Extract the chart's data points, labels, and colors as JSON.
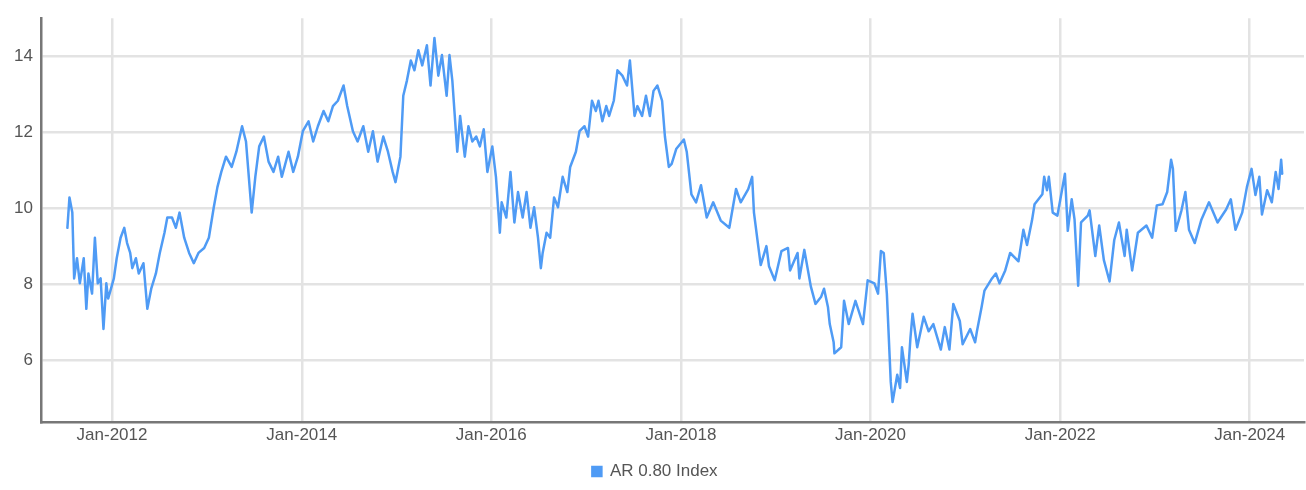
{
  "chart_data": {
    "type": "line",
    "x": [
      "2011-07-13",
      "2011-07-21",
      "2011-08-01",
      "2011-08-08",
      "2011-08-19",
      "2011-08-30",
      "2011-09-14",
      "2011-09-24",
      "2011-10-02",
      "2011-10-16",
      "2011-10-27",
      "2011-11-07",
      "2011-11-18",
      "2011-11-29",
      "2011-12-10",
      "2011-12-17",
      "2011-12-28",
      "2012-01-08",
      "2012-01-19",
      "2012-02-03",
      "2012-02-17",
      "2012-02-28",
      "2012-03-11",
      "2012-03-19",
      "2012-04-02",
      "2012-04-13",
      "2012-05-01",
      "2012-05-16",
      "2012-05-31",
      "2012-06-18",
      "2012-07-03",
      "2012-07-21",
      "2012-08-01",
      "2012-08-19",
      "2012-09-03",
      "2012-09-17",
      "2012-10-05",
      "2012-10-24",
      "2012-11-11",
      "2012-11-29",
      "2012-12-21",
      "2013-01-08",
      "2013-01-27",
      "2013-02-10",
      "2013-02-25",
      "2013-03-15",
      "2013-04-06",
      "2013-04-24",
      "2013-05-16",
      "2013-05-31",
      "2013-06-22",
      "2013-07-06",
      "2013-07-21",
      "2013-08-08",
      "2013-08-26",
      "2013-09-14",
      "2013-10-02",
      "2013-10-16",
      "2013-11-11",
      "2013-11-29",
      "2013-12-17",
      "2014-01-05",
      "2014-01-27",
      "2014-02-14",
      "2014-03-04",
      "2014-03-26",
      "2014-04-13",
      "2014-05-01",
      "2014-05-20",
      "2014-06-11",
      "2014-06-25",
      "2014-07-17",
      "2014-08-04",
      "2014-08-26",
      "2014-09-14",
      "2014-10-02",
      "2014-10-20",
      "2014-11-11",
      "2014-11-29",
      "2014-12-17",
      "2014-12-28",
      "2015-01-16",
      "2015-01-27",
      "2015-02-10",
      "2015-02-25",
      "2015-03-11",
      "2015-03-26",
      "2015-04-10",
      "2015-04-28",
      "2015-05-12",
      "2015-05-27",
      "2015-06-11",
      "2015-06-25",
      "2015-07-13",
      "2015-07-24",
      "2015-08-04",
      "2015-08-23",
      "2015-09-03",
      "2015-09-21",
      "2015-10-05",
      "2015-10-20",
      "2015-11-04",
      "2015-11-18",
      "2015-12-03",
      "2015-12-17",
      "2016-01-05",
      "2016-01-19",
      "2016-02-03",
      "2016-02-10",
      "2016-02-28",
      "2016-03-15",
      "2016-03-30",
      "2016-04-13",
      "2016-05-01",
      "2016-05-16",
      "2016-05-31",
      "2016-06-14",
      "2016-06-29",
      "2016-07-10",
      "2016-07-17",
      "2016-08-01",
      "2016-08-15",
      "2016-08-30",
      "2016-09-14",
      "2016-10-02",
      "2016-10-20",
      "2016-10-31",
      "2016-11-22",
      "2016-12-06",
      "2016-12-25",
      "2017-01-08",
      "2017-01-23",
      "2017-02-07",
      "2017-02-17",
      "2017-03-04",
      "2017-03-19",
      "2017-03-30",
      "2017-04-17",
      "2017-05-01",
      "2017-05-20",
      "2017-06-07",
      "2017-06-18",
      "2017-07-06",
      "2017-07-17",
      "2017-08-04",
      "2017-08-19",
      "2017-09-03",
      "2017-09-17",
      "2017-10-02",
      "2017-10-20",
      "2017-10-31",
      "2017-11-15",
      "2017-11-26",
      "2017-12-14",
      "2018-01-12",
      "2018-01-23",
      "2018-02-10",
      "2018-02-28",
      "2018-03-19",
      "2018-04-10",
      "2018-05-05",
      "2018-06-03",
      "2018-07-06",
      "2018-08-01",
      "2018-08-19",
      "2018-09-17",
      "2018-10-02",
      "2018-10-09",
      "2018-10-24",
      "2018-11-04",
      "2018-11-26",
      "2018-12-06",
      "2018-12-28",
      "2019-01-23",
      "2019-02-17",
      "2019-02-25",
      "2019-03-26",
      "2019-04-02",
      "2019-04-21",
      "2019-05-16",
      "2019-06-03",
      "2019-06-25",
      "2019-07-06",
      "2019-07-21",
      "2019-07-28",
      "2019-08-12",
      "2019-08-15",
      "2019-09-10",
      "2019-09-21",
      "2019-10-09",
      "2019-11-04",
      "2019-12-03",
      "2019-12-21",
      "2020-01-16",
      "2020-01-30",
      "2020-02-10",
      "2020-02-21",
      "2020-03-04",
      "2020-03-19",
      "2020-03-26",
      "2020-04-13",
      "2020-04-24",
      "2020-05-01",
      "2020-05-20",
      "2020-05-27",
      "2020-06-03",
      "2020-06-11",
      "2020-06-29",
      "2020-07-24",
      "2020-08-12",
      "2020-08-30",
      "2020-09-28",
      "2020-10-13",
      "2020-10-31",
      "2020-11-15",
      "2020-12-10",
      "2020-12-21",
      "2021-01-19",
      "2021-02-07",
      "2021-02-14",
      "2021-03-04",
      "2021-03-15",
      "2021-04-13",
      "2021-04-28",
      "2021-05-12",
      "2021-06-03",
      "2021-06-22",
      "2021-07-24",
      "2021-08-12",
      "2021-08-26",
      "2021-09-14",
      "2021-09-24",
      "2021-10-24",
      "2021-10-31",
      "2021-11-11",
      "2021-11-18",
      "2021-12-03",
      "2021-12-21",
      "2022-01-19",
      "2022-01-30",
      "2022-02-14",
      "2022-02-25",
      "2022-03-11",
      "2022-03-22",
      "2022-04-17",
      "2022-04-24",
      "2022-05-16",
      "2022-05-31",
      "2022-06-18",
      "2022-07-10",
      "2022-07-28",
      "2022-08-15",
      "2022-09-06",
      "2022-09-14",
      "2022-10-05",
      "2022-10-27",
      "2022-11-29",
      "2022-12-21",
      "2023-01-08",
      "2023-01-30",
      "2023-02-17",
      "2023-03-04",
      "2023-03-11",
      "2023-03-22",
      "2023-04-13",
      "2023-04-28",
      "2023-05-12",
      "2023-06-03",
      "2023-06-29",
      "2023-07-28",
      "2023-08-30",
      "2023-10-02",
      "2023-10-20",
      "2023-11-07",
      "2023-12-03",
      "2023-12-21",
      "2024-01-08",
      "2024-01-23",
      "2024-02-07",
      "2024-02-17",
      "2024-03-08",
      "2024-03-26",
      "2024-04-10",
      "2024-04-21",
      "2024-05-01",
      "2024-05-05"
    ],
    "series": [
      {
        "name": "AR 0.80 Index",
        "color": "#4f9bf5",
        "values": [
          9.49,
          10.29,
          9.89,
          8.16,
          8.69,
          8.03,
          8.69,
          7.36,
          8.29,
          7.76,
          9.23,
          8.03,
          8.16,
          6.83,
          8.03,
          7.63,
          7.89,
          8.16,
          8.69,
          9.23,
          9.49,
          9.09,
          8.83,
          8.43,
          8.69,
          8.29,
          8.56,
          7.36,
          7.89,
          8.29,
          8.83,
          9.36,
          9.76,
          9.76,
          9.49,
          9.89,
          9.23,
          8.83,
          8.56,
          8.83,
          8.96,
          9.23,
          10.03,
          10.56,
          10.96,
          11.36,
          11.09,
          11.49,
          12.16,
          11.76,
          9.89,
          10.83,
          11.63,
          11.89,
          11.23,
          10.96,
          11.36,
          10.83,
          11.49,
          10.96,
          11.36,
          12.03,
          12.29,
          11.76,
          12.16,
          12.56,
          12.29,
          12.69,
          12.83,
          13.23,
          12.69,
          12.03,
          11.76,
          12.16,
          11.49,
          12.03,
          11.23,
          11.89,
          11.49,
          10.96,
          10.69,
          11.36,
          12.96,
          13.36,
          13.89,
          13.63,
          14.16,
          13.76,
          14.29,
          13.23,
          14.48,
          13.49,
          14.03,
          12.96,
          14.03,
          13.36,
          11.49,
          12.43,
          11.36,
          12.16,
          11.76,
          11.89,
          11.63,
          12.08,
          10.96,
          11.63,
          10.83,
          9.36,
          10.16,
          9.76,
          10.96,
          9.63,
          10.43,
          9.76,
          10.43,
          9.49,
          10.03,
          9.23,
          8.43,
          8.83,
          9.36,
          9.23,
          10.29,
          10.03,
          10.83,
          10.43,
          11.09,
          11.49,
          12.03,
          12.16,
          11.89,
          12.83,
          12.56,
          12.83,
          12.29,
          12.69,
          12.43,
          12.83,
          13.63,
          13.49,
          13.23,
          13.89,
          12.43,
          12.69,
          12.43,
          12.96,
          12.43,
          13.09,
          13.23,
          12.83,
          11.89,
          11.09,
          11.17,
          11.57,
          11.81,
          11.49,
          10.37,
          10.16,
          10.61,
          9.76,
          10.16,
          9.68,
          9.49,
          10.51,
          10.16,
          10.51,
          10.83,
          9.89,
          9.09,
          8.51,
          9.01,
          8.48,
          8.11,
          8.88,
          8.96,
          8.37,
          8.83,
          8.16,
          8.91,
          7.95,
          7.49,
          7.68,
          7.89,
          7.41,
          6.96,
          6.48,
          6.19,
          6.35,
          7.57,
          6.96,
          7.57,
          6.96,
          8.11,
          8.03,
          7.76,
          8.88,
          8.83,
          7.76,
          5.44,
          4.91,
          5.63,
          5.28,
          6.35,
          5.44,
          5.89,
          6.61,
          7.23,
          6.35,
          7.15,
          6.77,
          6.96,
          6.29,
          6.88,
          6.29,
          7.49,
          7.04,
          6.43,
          6.83,
          6.48,
          6.77,
          7.41,
          7.84,
          8.16,
          8.29,
          8.03,
          8.37,
          8.83,
          8.61,
          9.44,
          9.04,
          9.68,
          10.11,
          10.37,
          10.83,
          10.48,
          10.83,
          9.89,
          9.81,
          10.91,
          9.41,
          10.24,
          9.71,
          7.97,
          9.63,
          9.81,
          9.95,
          8.75,
          9.55,
          8.64,
          8.08,
          9.17,
          9.63,
          8.75,
          9.44,
          8.37,
          9.36,
          9.55,
          9.23,
          10.08,
          10.11,
          10.43,
          11.28,
          11.04,
          9.41,
          9.95,
          10.43,
          9.44,
          9.09,
          9.71,
          10.16,
          9.63,
          9.97,
          10.24,
          9.44,
          9.89,
          10.56,
          11.04,
          10.35,
          10.83,
          9.84,
          10.48,
          10.16,
          10.96,
          10.51,
          11.28,
          10.91
        ]
      }
    ],
    "xlim": [
      "2011-04-02",
      "2024-07-28"
    ],
    "xticks": [
      {
        "value": "2012-01-01",
        "label": "Jan-2012"
      },
      {
        "value": "2014-01-01",
        "label": "Jan-2014"
      },
      {
        "value": "2016-01-01",
        "label": "Jan-2016"
      },
      {
        "value": "2018-01-01",
        "label": "Jan-2018"
      },
      {
        "value": "2020-01-01",
        "label": "Jan-2020"
      },
      {
        "value": "2022-01-01",
        "label": "Jan-2022"
      },
      {
        "value": "2024-01-01",
        "label": "Jan-2024"
      }
    ],
    "ylim": [
      4.37,
      15.0
    ],
    "yticks": [
      6,
      8,
      10,
      12,
      14
    ],
    "grid": true,
    "legend": "bottom",
    "marker": "none",
    "line_style": "solid"
  }
}
